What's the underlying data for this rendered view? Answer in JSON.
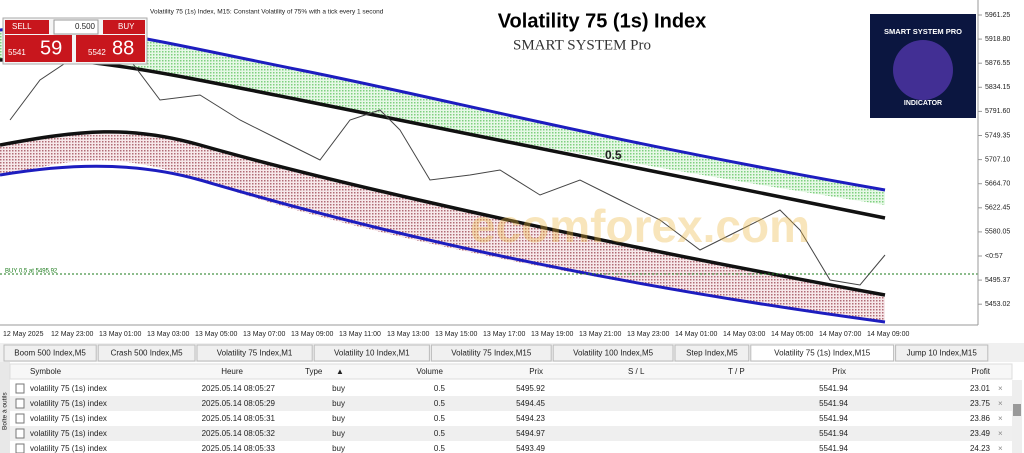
{
  "header": {
    "title": "Volatility 75 (1s) Index",
    "subtitle": "SMART SYSTEM Pro"
  },
  "chart_info": "Volatility 75 (1s) Index, M15: Constant Volatility of 75% with a tick every 1 second",
  "trade_panel": {
    "sell": "SELL",
    "volume": "0.500",
    "buy": "BUY",
    "bid_big": "5541",
    "bid_small": "59",
    "ask_big": "5542",
    "ask_small": "88"
  },
  "price_labels": [
    "5961.25",
    "5918.80",
    "5876.55",
    "5834.15",
    "5791.60",
    "5749.35",
    "5707.10",
    "5664.70",
    "5622.45",
    "5580.05",
    "<0:57",
    "5495.37",
    "5453.02"
  ],
  "time_labels": [
    "12 May 2025",
    "12 May 23:00",
    "13 May 01:00",
    "13 May 03:00",
    "13 May 05:00",
    "13 May 07:00",
    "13 May 09:00",
    "13 May 11:00",
    "13 May 13:00",
    "13 May 15:00",
    "13 May 17:00",
    "13 May 19:00",
    "13 May 21:00",
    "13 May 23:00",
    "14 May 01:00",
    "14 May 03:00",
    "14 May 05:00",
    "14 May 07:00",
    "14 May 09:00"
  ],
  "chart_annotations": {
    "level": "0.5",
    "order_line": "BUY 0.5 at 5495.92"
  },
  "ad": {
    "title": "SMART SYSTEM PRO",
    "subtitle": "INDICATOR"
  },
  "watermark": "ecomforex.com",
  "tabs": [
    "Boom 500 Index,M5",
    "Crash 500 Index,M5",
    "Volatility 75 Index,M1",
    "Volatility 10 Index,M1",
    "Volatility 75 Index,M15",
    "Volatility 100 Index,M5",
    "Step Index,M5",
    "Volatility 75 (1s) Index,M15",
    "Jump 10 Index,M15"
  ],
  "active_tab": 7,
  "toolbox_label": "Boîte à outils",
  "table": {
    "headers": [
      "Symbole",
      "Heure",
      "Type",
      "Volume",
      "Prix",
      "S / L",
      "T / P",
      "Prix",
      "Profit"
    ],
    "rows": [
      {
        "symbol": "volatility 75 (1s) index",
        "time": "2025.05.14 08:05:27",
        "type": "buy",
        "volume": "0.5",
        "price": "5495.92",
        "current": "5541.94",
        "profit": "23.01"
      },
      {
        "symbol": "volatility 75 (1s) index",
        "time": "2025.05.14 08:05:29",
        "type": "buy",
        "volume": "0.5",
        "price": "5494.45",
        "current": "5541.94",
        "profit": "23.75"
      },
      {
        "symbol": "volatility 75 (1s) index",
        "time": "2025.05.14 08:05:31",
        "type": "buy",
        "volume": "0.5",
        "price": "5494.23",
        "current": "5541.94",
        "profit": "23.86"
      },
      {
        "symbol": "volatility 75 (1s) index",
        "time": "2025.05.14 08:05:32",
        "type": "buy",
        "volume": "0.5",
        "price": "5494.97",
        "current": "5541.94",
        "profit": "23.49"
      },
      {
        "symbol": "volatility 75 (1s) index",
        "time": "2025.05.14 08:05:33",
        "type": "buy",
        "volume": "0.5",
        "price": "5493.49",
        "current": "5541.94",
        "profit": "24.23"
      }
    ]
  }
}
